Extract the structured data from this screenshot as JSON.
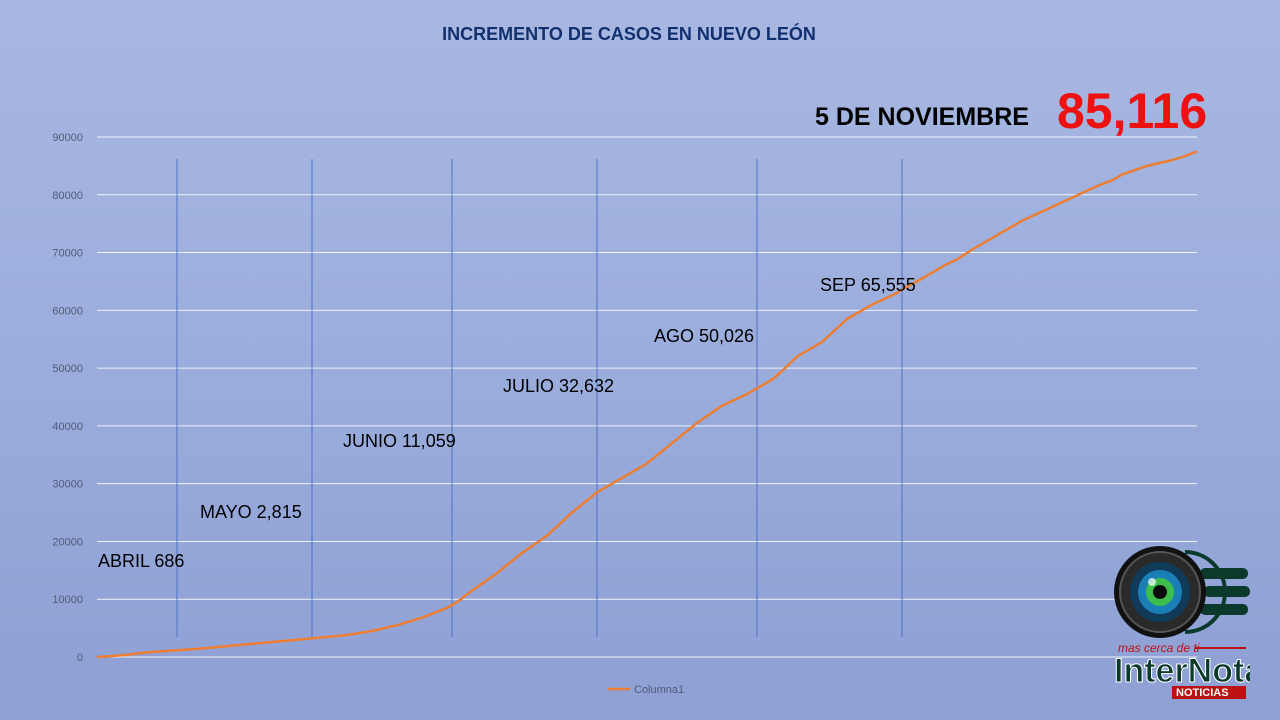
{
  "header": {
    "title": "INCREMENTO DE CASOS EN NUEVO LEÓN",
    "date_label": "5 DE NOVIEMBRE",
    "total": "85,116"
  },
  "annotations": [
    {
      "text": "ABRIL 686"
    },
    {
      "text": "MAYO 2,815"
    },
    {
      "text": "JUNIO 11,059"
    },
    {
      "text": "JULIO 32,632"
    },
    {
      "text": "AGO 50,026"
    },
    {
      "text": "SEP 65,555"
    }
  ],
  "logo": {
    "tagline": "mas cerca de ti",
    "brand": "InterNota",
    "sub": "NOTICIAS"
  },
  "chart_data": {
    "type": "line",
    "title": "INCREMENTO DE CASOS EN NUEVO LEÓN",
    "xlabel": "",
    "ylabel": "",
    "ylim": [
      0,
      90000
    ],
    "yticks": [
      0,
      10000,
      20000,
      30000,
      40000,
      50000,
      60000,
      70000,
      80000,
      90000
    ],
    "grid": true,
    "legend": "bottom",
    "colors": {
      "line": "#ed7d31",
      "grid": "#ffffff",
      "separator": "#3b66c4"
    },
    "x_range": [
      0,
      220
    ],
    "month_separator_x": [
      16,
      43,
      71,
      100,
      132,
      161
    ],
    "series": [
      {
        "name": "Columna1",
        "x": [
          0,
          2,
          5,
          10,
          15,
          20,
          25,
          30,
          35,
          40,
          45,
          50,
          55,
          60,
          65,
          70,
          72,
          75,
          80,
          85,
          90,
          95,
          100,
          105,
          110,
          115,
          120,
          125,
          130,
          133,
          135,
          137,
          140,
          145,
          150,
          155,
          160,
          161,
          165,
          170,
          172,
          175,
          180,
          185,
          190,
          195,
          200,
          203,
          205,
          210,
          215,
          217,
          220
        ],
        "values": [
          0,
          100,
          300,
          800,
          1100,
          1400,
          1800,
          2200,
          2600,
          3000,
          3400,
          3800,
          4500,
          5500,
          6800,
          8500,
          9500,
          11500,
          14500,
          18000,
          21000,
          25000,
          28500,
          31000,
          33500,
          37000,
          40500,
          43500,
          45500,
          47000,
          48000,
          49500,
          52000,
          54500,
          58500,
          61000,
          63000,
          63600,
          65500,
          68000,
          68800,
          70500,
          73000,
          75500,
          77500,
          79500,
          81500,
          82500,
          83500,
          85000,
          86000,
          86500,
          87500
        ]
      }
    ]
  }
}
